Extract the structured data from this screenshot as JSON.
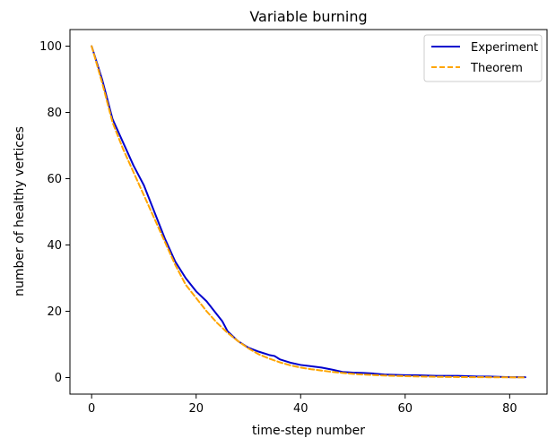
{
  "chart_data": {
    "type": "line",
    "title": "Variable burning",
    "xlabel": "time-step number",
    "ylabel": "number of healthy vertices",
    "xlim": [
      -4.15,
      87.15
    ],
    "ylim": [
      -5,
      105
    ],
    "xticks": [
      0,
      20,
      40,
      60,
      80
    ],
    "yticks": [
      0,
      20,
      40,
      60,
      80,
      100
    ],
    "grid": false,
    "legend_position": "top-right",
    "series": [
      {
        "name": "Experiment",
        "color": "#0000cd",
        "linestyle": "solid",
        "x": [
          0,
          2,
          4,
          6,
          8,
          10,
          12,
          14,
          16,
          18,
          20,
          22,
          24,
          25,
          26,
          28,
          30,
          32,
          34,
          35,
          36,
          38,
          40,
          42,
          44,
          46,
          48,
          50,
          52,
          54,
          56,
          58,
          60,
          62,
          64,
          66,
          68,
          70,
          72,
          74,
          76,
          78,
          80,
          82,
          83
        ],
        "y": [
          100,
          90,
          78,
          71,
          64,
          58,
          50,
          42,
          35,
          30,
          26,
          23,
          19,
          17,
          14,
          11,
          9,
          7.8,
          6.8,
          6.5,
          5.5,
          4.5,
          3.8,
          3.4,
          3,
          2.4,
          1.7,
          1.5,
          1.4,
          1.2,
          0.9,
          0.8,
          0.7,
          0.7,
          0.6,
          0.5,
          0.5,
          0.5,
          0.4,
          0.3,
          0.3,
          0.2,
          0.1,
          0.1,
          0.1
        ]
      },
      {
        "name": "Theorem",
        "color": "#ffa500",
        "linestyle": "dashed",
        "x": [
          0,
          2,
          4,
          6,
          8,
          10,
          12,
          14,
          16,
          18,
          20,
          22,
          24,
          26,
          28,
          30,
          32,
          34,
          36,
          38,
          40,
          42,
          44,
          46,
          48,
          50,
          52,
          54,
          56,
          58,
          60,
          62,
          64,
          66,
          68,
          70,
          72,
          74,
          76,
          78,
          80,
          82,
          83
        ],
        "y": [
          100,
          89,
          77,
          69,
          62,
          55,
          48,
          41,
          34,
          28,
          24,
          20,
          16.5,
          13.5,
          11,
          8.8,
          7,
          5.7,
          4.6,
          3.7,
          3,
          2.5,
          2.1,
          1.7,
          1.4,
          1.1,
          0.9,
          0.75,
          0.6,
          0.5,
          0.4,
          0.33,
          0.27,
          0.22,
          0.18,
          0.15,
          0.12,
          0.1,
          0.08,
          0.06,
          0.05,
          0.04,
          0.03
        ]
      }
    ]
  }
}
